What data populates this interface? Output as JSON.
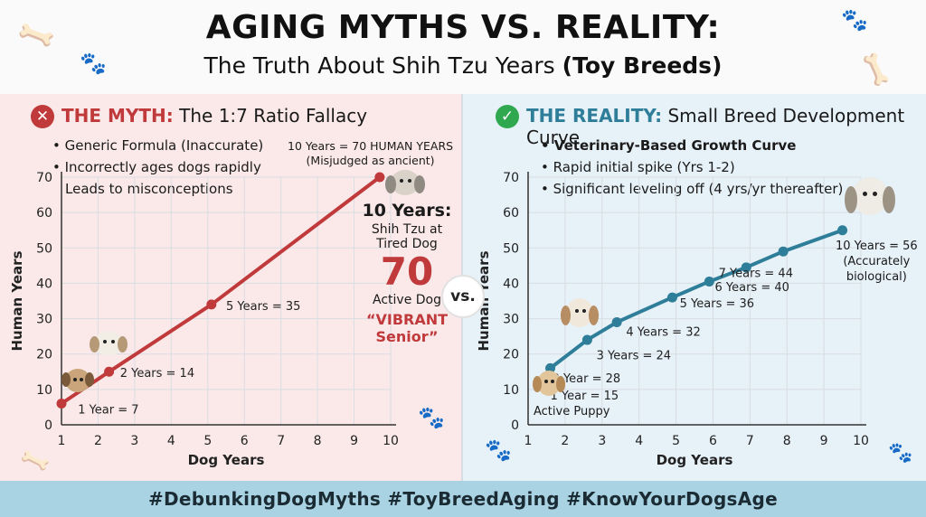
{
  "header": {
    "title": "AGING MYTHS VS. REALITY:",
    "subtitle_main": "The Truth About Shih Tzu Years",
    "subtitle_bold": "(Toy Breeds)"
  },
  "myth_panel": {
    "badge_icon": "x-mark-icon",
    "heading_keyword": "THE MYTH:",
    "heading_rest": "The 1:7 Ratio Fallacy",
    "bullets": [
      "• Generic Formula (Inaccurate)",
      "• Incorrectly ages dogs rapidly"
    ],
    "note": "Leads to misconceptions",
    "callout_line1": "10 Years = 70 HUMAN YEARS",
    "callout_line2": "(Misjudged as ancient)",
    "side_title_line1": "10 Years:",
    "side_title_line2": "Shih Tzu at",
    "side_label_tired": "Tired Dog",
    "side_big_number": "70",
    "side_label_active": "Active Dog",
    "side_quote_line1": "“VIBRANT",
    "side_quote_line2": "Senior”",
    "colors": {
      "accent": "#c0393b",
      "panel_bg": "#fbe9e9"
    }
  },
  "reality_panel": {
    "badge_icon": "check-mark-icon",
    "heading_keyword": "THE REALITY:",
    "heading_rest": "Small Breed Development Curve",
    "bullet_bold": "• Veterinary-Based Growth Curve",
    "bullets": [
      "• Rapid initial spike (Yrs 1-2)",
      "• Significant leveling off (4 yrs/yr thereafter)"
    ],
    "callout_line1": "10 Years = 56",
    "callout_line2": "(Accurately",
    "callout_line3": "biological)",
    "puppy_label": "Active Puppy",
    "colors": {
      "accent": "#2e7d99",
      "panel_bg": "#e6f1f8",
      "check": "#2fa84f"
    }
  },
  "vs_label": "vs.",
  "footer": {
    "hashtags": "#DebunkingDogMyths  #ToyBreedAging  #KnowYourDogsAge"
  },
  "chart_data": [
    {
      "type": "line",
      "xlabel": "Dog Years",
      "ylabel": "Human Years",
      "xlim": [
        1,
        10
      ],
      "ylim": [
        0,
        70
      ],
      "x_ticks": [
        1,
        2,
        3,
        4,
        5,
        6,
        7,
        8,
        9,
        10
      ],
      "y_ticks": [
        0,
        10,
        20,
        30,
        40,
        50,
        60,
        70
      ],
      "grid": true,
      "color": "#c0393b",
      "series": [
        {
          "points": [
            {
              "x": 1,
              "y": 6
            },
            {
              "x": 2.3,
              "y": 15
            },
            {
              "x": 5.1,
              "y": 34
            },
            {
              "x": 9.7,
              "y": 70
            }
          ]
        }
      ],
      "annotations": [
        "1 Year = 7",
        "2 Years = 14",
        "5 Years = 35"
      ]
    },
    {
      "type": "line",
      "xlabel": "Dog Years",
      "ylabel": "Human Years",
      "xlim": [
        1,
        10
      ],
      "ylim": [
        0,
        70
      ],
      "x_ticks": [
        1,
        2,
        3,
        4,
        5,
        6,
        7,
        8,
        9,
        10
      ],
      "y_ticks": [
        0,
        10,
        20,
        30,
        40,
        50,
        60,
        70
      ],
      "grid": true,
      "color": "#2e7d99",
      "series": [
        {
          "points": [
            {
              "x": 1.6,
              "y": 16
            },
            {
              "x": 2.6,
              "y": 24
            },
            {
              "x": 3.4,
              "y": 29
            },
            {
              "x": 4.9,
              "y": 36
            },
            {
              "x": 5.9,
              "y": 40.5
            },
            {
              "x": 6.9,
              "y": 44.5
            },
            {
              "x": 7.9,
              "y": 49
            },
            {
              "x": 9.5,
              "y": 55
            }
          ]
        }
      ],
      "annotations": [
        "1 Year = 15",
        "2 Year = 28",
        "3 Years = 24",
        "4 Years = 32",
        "5 Years = 36",
        "6 Years = 40",
        "7 Years = 44"
      ]
    }
  ]
}
